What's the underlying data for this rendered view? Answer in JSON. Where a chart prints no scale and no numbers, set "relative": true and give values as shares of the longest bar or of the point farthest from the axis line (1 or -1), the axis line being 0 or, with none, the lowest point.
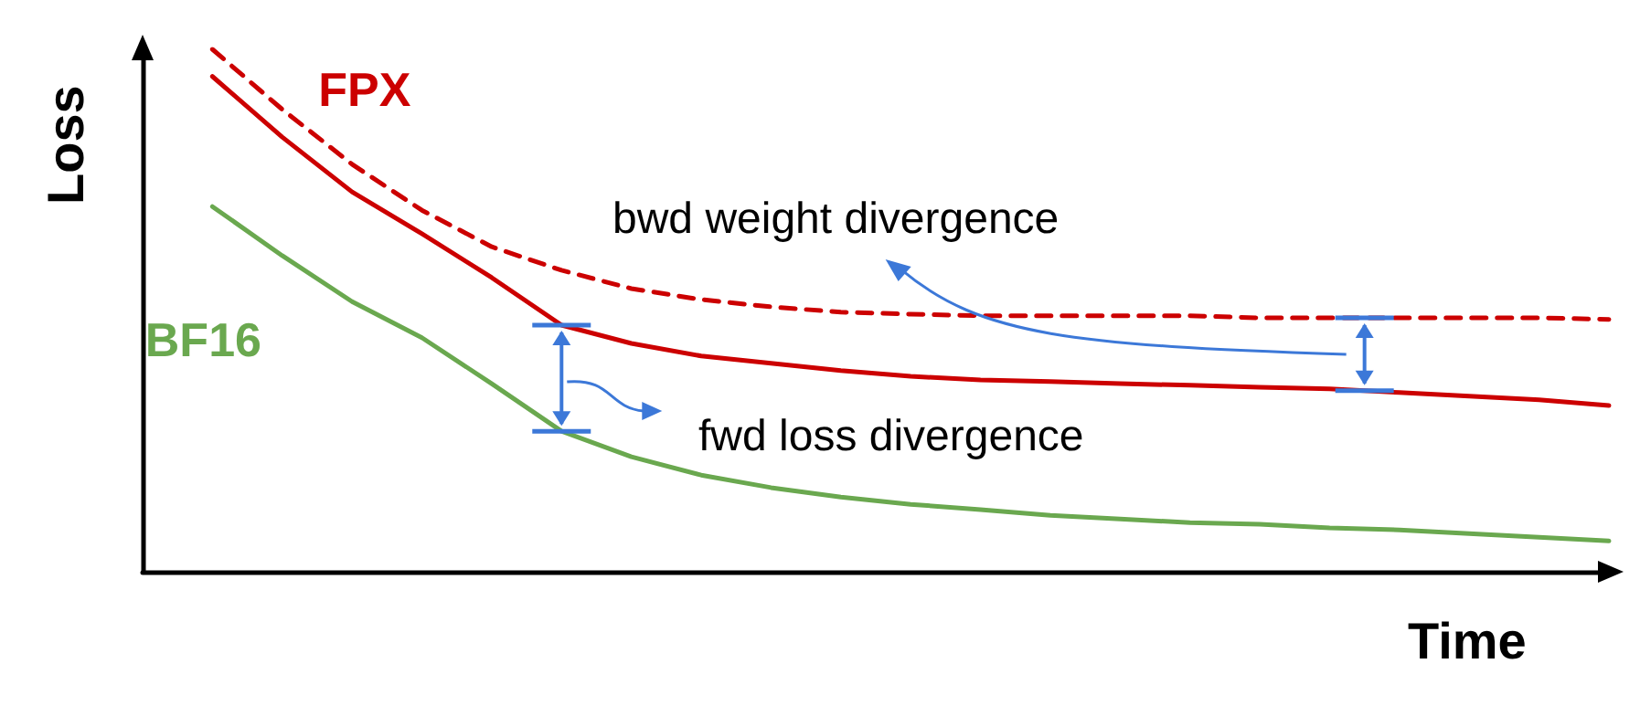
{
  "chart_data": {
    "type": "line",
    "relative": true,
    "xlabel": "Time",
    "ylabel": "Loss",
    "categories": [
      null,
      null,
      null,
      null,
      null,
      null,
      null,
      null,
      null,
      null,
      null,
      null,
      null,
      null,
      null,
      null,
      null,
      null,
      null,
      null,
      null,
      null
    ],
    "series": [
      {
        "color": "#cc0000",
        "line_style": "dashed",
        "values": [
          null,
          1,
          0.885,
          0.78,
          0.692,
          0.622,
          0.577,
          0.542,
          0.521,
          0.507,
          0.497,
          0.493,
          0.49,
          0.49,
          0.49,
          0.49,
          0.486,
          0.486,
          0.486,
          0.486,
          0.486,
          0.483
        ]
      },
      {
        "name": "FPX",
        "color": "#cc0000",
        "line_style": "solid",
        "values": [
          null,
          0.948,
          0.832,
          0.727,
          0.647,
          0.563,
          0.472,
          0.437,
          0.413,
          0.399,
          0.385,
          0.374,
          0.367,
          0.364,
          0.36,
          0.357,
          0.353,
          0.35,
          0.343,
          0.336,
          0.329,
          0.318
        ]
      },
      {
        "name": "BF16",
        "color": "#6aa84f",
        "line_style": "solid",
        "values": [
          null,
          0.699,
          0.605,
          0.517,
          0.448,
          0.36,
          0.269,
          0.22,
          0.185,
          0.161,
          0.143,
          0.129,
          0.119,
          0.108,
          0.101,
          0.094,
          0.091,
          0.084,
          0.08,
          0.073,
          0.066,
          0.059
        ]
      }
    ],
    "marker": "none",
    "legend": false,
    "grid": false,
    "annotations": [
      "bwd weight divergence",
      "fwd loss divergence"
    ]
  }
}
